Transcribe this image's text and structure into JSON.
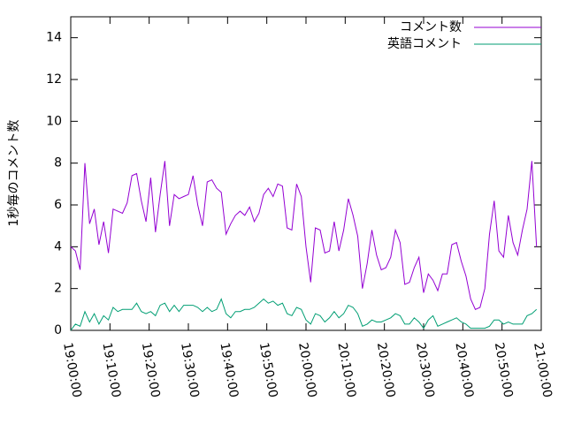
{
  "chart_data": {
    "type": "line",
    "y_label": "1秒毎のコメント数",
    "x": [
      "19:00:00",
      "19:01:12",
      "19:02:24",
      "19:03:36",
      "19:04:48",
      "19:06:00",
      "19:07:12",
      "19:08:24",
      "19:09:36",
      "19:10:48",
      "19:12:00",
      "19:13:12",
      "19:14:24",
      "19:15:36",
      "19:16:48",
      "19:18:00",
      "19:19:12",
      "19:20:24",
      "19:21:36",
      "19:22:48",
      "19:24:00",
      "19:25:12",
      "19:26:24",
      "19:27:36",
      "19:28:48",
      "19:30:00",
      "19:31:12",
      "19:32:24",
      "19:33:36",
      "19:34:48",
      "19:36:00",
      "19:37:12",
      "19:38:24",
      "19:39:36",
      "19:40:48",
      "19:42:00",
      "19:43:12",
      "19:44:24",
      "19:45:36",
      "19:46:48",
      "19:48:00",
      "19:49:12",
      "19:50:24",
      "19:51:36",
      "19:52:48",
      "19:54:00",
      "19:55:12",
      "19:56:24",
      "19:57:36",
      "19:58:48",
      "20:00:00",
      "20:01:12",
      "20:02:24",
      "20:03:36",
      "20:04:48",
      "20:06:00",
      "20:07:12",
      "20:08:24",
      "20:09:36",
      "20:10:48",
      "20:12:00",
      "20:13:12",
      "20:14:24",
      "20:15:36",
      "20:16:48",
      "20:18:00",
      "20:19:12",
      "20:20:24",
      "20:21:36",
      "20:22:48",
      "20:24:00",
      "20:25:12",
      "20:26:24",
      "20:27:36",
      "20:28:48",
      "20:30:00",
      "20:31:12",
      "20:32:24",
      "20:33:36",
      "20:34:48",
      "20:36:00",
      "20:37:12",
      "20:38:24",
      "20:39:36",
      "20:40:48",
      "20:42:00",
      "20:43:12",
      "20:44:24",
      "20:45:36",
      "20:46:48",
      "20:48:00",
      "20:49:12",
      "20:50:24",
      "20:51:36",
      "20:52:48",
      "20:54:00",
      "20:55:12",
      "20:56:24",
      "20:57:36",
      "20:58:48"
    ],
    "series": [
      {
        "name": "コメント数",
        "color": "#9400d3",
        "values": [
          4.0,
          3.8,
          2.9,
          8.0,
          5.1,
          5.8,
          4.1,
          5.2,
          3.7,
          5.8,
          5.7,
          5.6,
          6.1,
          7.4,
          7.5,
          6.2,
          5.2,
          7.3,
          4.7,
          6.5,
          8.1,
          5.0,
          6.5,
          6.3,
          6.4,
          6.5,
          7.4,
          6.0,
          5.0,
          7.1,
          7.2,
          6.8,
          6.6,
          4.6,
          5.1,
          5.5,
          5.7,
          5.5,
          5.9,
          5.2,
          5.6,
          6.5,
          6.8,
          6.4,
          7.0,
          6.9,
          4.9,
          4.8,
          7.0,
          6.4,
          4.0,
          2.3,
          4.9,
          4.8,
          3.7,
          3.8,
          5.2,
          3.8,
          4.8,
          6.3,
          5.5,
          4.5,
          2.0,
          3.2,
          4.8,
          3.6,
          2.9,
          3.0,
          3.5,
          4.8,
          4.2,
          2.2,
          2.3,
          3.0,
          3.5,
          1.8,
          2.7,
          2.4,
          1.9,
          2.7,
          2.7,
          4.1,
          4.2,
          3.3,
          2.6,
          1.5,
          1.0,
          1.1,
          2.0,
          4.6,
          6.2,
          3.8,
          3.5,
          5.5,
          4.2,
          3.6,
          4.8,
          5.8,
          8.1,
          4.0
        ]
      },
      {
        "name": "英語コメント",
        "color": "#009e73",
        "values": [
          0.0,
          0.3,
          0.2,
          0.9,
          0.4,
          0.8,
          0.3,
          0.7,
          0.5,
          1.1,
          0.9,
          1.0,
          1.0,
          1.0,
          1.3,
          0.9,
          0.8,
          0.9,
          0.7,
          1.2,
          1.3,
          0.9,
          1.2,
          0.9,
          1.2,
          1.2,
          1.2,
          1.1,
          0.9,
          1.1,
          0.9,
          1.0,
          1.5,
          0.8,
          0.6,
          0.9,
          0.9,
          1.0,
          1.0,
          1.1,
          1.3,
          1.5,
          1.3,
          1.4,
          1.2,
          1.3,
          0.8,
          0.7,
          1.1,
          1.0,
          0.5,
          0.3,
          0.8,
          0.7,
          0.4,
          0.6,
          0.9,
          0.6,
          0.8,
          1.2,
          1.1,
          0.8,
          0.2,
          0.3,
          0.5,
          0.4,
          0.4,
          0.5,
          0.6,
          0.8,
          0.7,
          0.3,
          0.3,
          0.6,
          0.4,
          0.1,
          0.5,
          0.7,
          0.2,
          0.3,
          0.4,
          0.5,
          0.6,
          0.4,
          0.3,
          0.1,
          0.1,
          0.1,
          0.1,
          0.2,
          0.5,
          0.5,
          0.3,
          0.4,
          0.3,
          0.3,
          0.3,
          0.7,
          0.8,
          1.0
        ]
      }
    ],
    "xlim": [
      "19:00:00",
      "21:00:00"
    ],
    "xticks": [
      "19:00:00",
      "19:10:00",
      "19:20:00",
      "19:30:00",
      "19:40:00",
      "19:50:00",
      "20:00:00",
      "20:10:00",
      "20:20:00",
      "20:30:00",
      "20:40:00",
      "20:50:00",
      "21:00:00"
    ],
    "ylim": [
      0,
      15
    ],
    "yticks": [
      0,
      2,
      4,
      6,
      8,
      10,
      12,
      14
    ],
    "legend": "top-right"
  }
}
